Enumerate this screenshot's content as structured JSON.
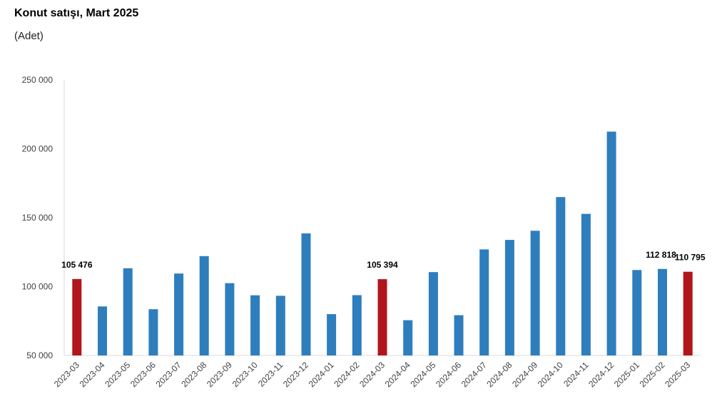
{
  "title": "Konut satışı, Mart 2025",
  "subtitle": "(Adet)",
  "colors": {
    "default": "#2E7EBD",
    "highlight": "#B2161D",
    "axis": "#D9D9D9"
  },
  "chart_data": {
    "type": "bar",
    "title": "Konut satışı, Mart 2025",
    "subtitle": "(Adet)",
    "categories": [
      "2023-03",
      "2023-04",
      "2023-05",
      "2023-06",
      "2023-07",
      "2023-08",
      "2023-09",
      "2023-10",
      "2023-11",
      "2023-12",
      "2024-01",
      "2024-02",
      "2024-03",
      "2024-04",
      "2024-05",
      "2024-06",
      "2024-07",
      "2024-08",
      "2024-09",
      "2024-10",
      "2024-11",
      "2024-12",
      "2025-01",
      "2025-02",
      "2025-03"
    ],
    "values": [
      105476,
      85600,
      113300,
      83600,
      109500,
      122100,
      102500,
      93700,
      93300,
      138600,
      80000,
      93800,
      105394,
      75600,
      110500,
      79200,
      127000,
      133900,
      140500,
      165000,
      152800,
      212500,
      112000,
      112818,
      110795
    ],
    "highlight": [
      true,
      false,
      false,
      false,
      false,
      false,
      false,
      false,
      false,
      false,
      false,
      false,
      true,
      false,
      false,
      false,
      false,
      false,
      false,
      false,
      false,
      false,
      false,
      false,
      true
    ],
    "data_labels": [
      "105 476",
      "",
      "",
      "",
      "",
      "",
      "",
      "",
      "",
      "",
      "",
      "",
      "105 394",
      "",
      "",
      "",
      "",
      "",
      "",
      "",
      "",
      "",
      "",
      "112 818",
      "110 795"
    ],
    "yticks": [
      50000,
      100000,
      150000,
      200000,
      250000
    ],
    "ytick_labels": [
      "50 000",
      "100 000",
      "150 000",
      "200 000",
      "250 000"
    ],
    "ylim": [
      50000,
      250000
    ],
    "xlabel": "",
    "ylabel": "",
    "grid": false
  }
}
